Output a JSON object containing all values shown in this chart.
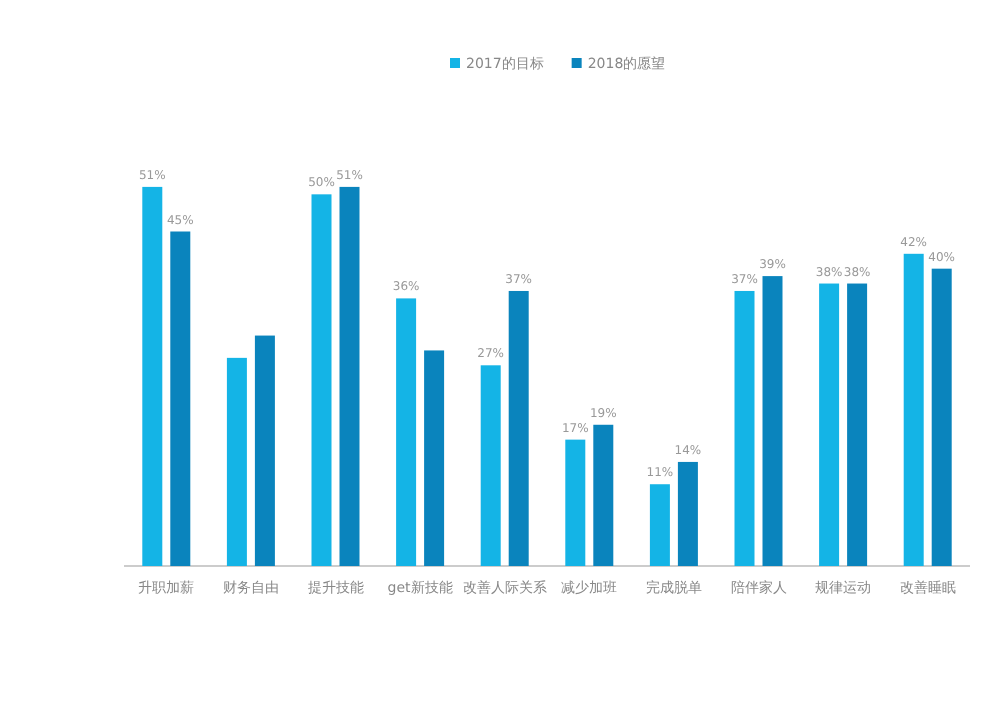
{
  "chart_data": {
    "type": "bar",
    "relative": false,
    "categories": [
      "升职加薪",
      "财务自由",
      "提升技能",
      "get新技能",
      "改善人际关系",
      "减少加班",
      "完成脱单",
      "陪伴家人",
      "规律运动",
      "改善睡眠"
    ],
    "series": [
      {
        "name": "2017的目标",
        "color": "#14b4e6",
        "values": [
          51,
          28,
          50,
          36,
          27,
          17,
          11,
          37,
          38,
          42
        ],
        "value_labels": [
          "51%",
          null,
          "50%",
          "36%",
          "27%",
          "17%",
          "11%",
          "37%",
          "38%",
          "42%"
        ]
      },
      {
        "name": "2018的愿望",
        "color": "#0a84bd",
        "values": [
          45,
          31,
          51,
          29,
          37,
          19,
          14,
          39,
          38,
          40
        ],
        "value_labels": [
          "45%",
          null,
          "51%",
          null,
          "37%",
          "19%",
          "14%",
          "39%",
          "38%",
          "40%"
        ]
      }
    ],
    "legend": "top"
  }
}
